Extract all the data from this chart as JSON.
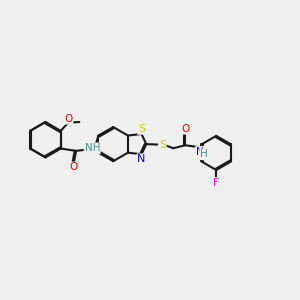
{
  "bg_color": "#efefef",
  "bond_color": "#1a1a1a",
  "atom_colors": {
    "O": "#ff0000",
    "N": "#0000cc",
    "S": "#cccc00",
    "F": "#ff00ff",
    "H": "#4a9090",
    "C": "#1a1a1a"
  },
  "figsize": [
    3.0,
    3.0
  ],
  "dpi": 100
}
